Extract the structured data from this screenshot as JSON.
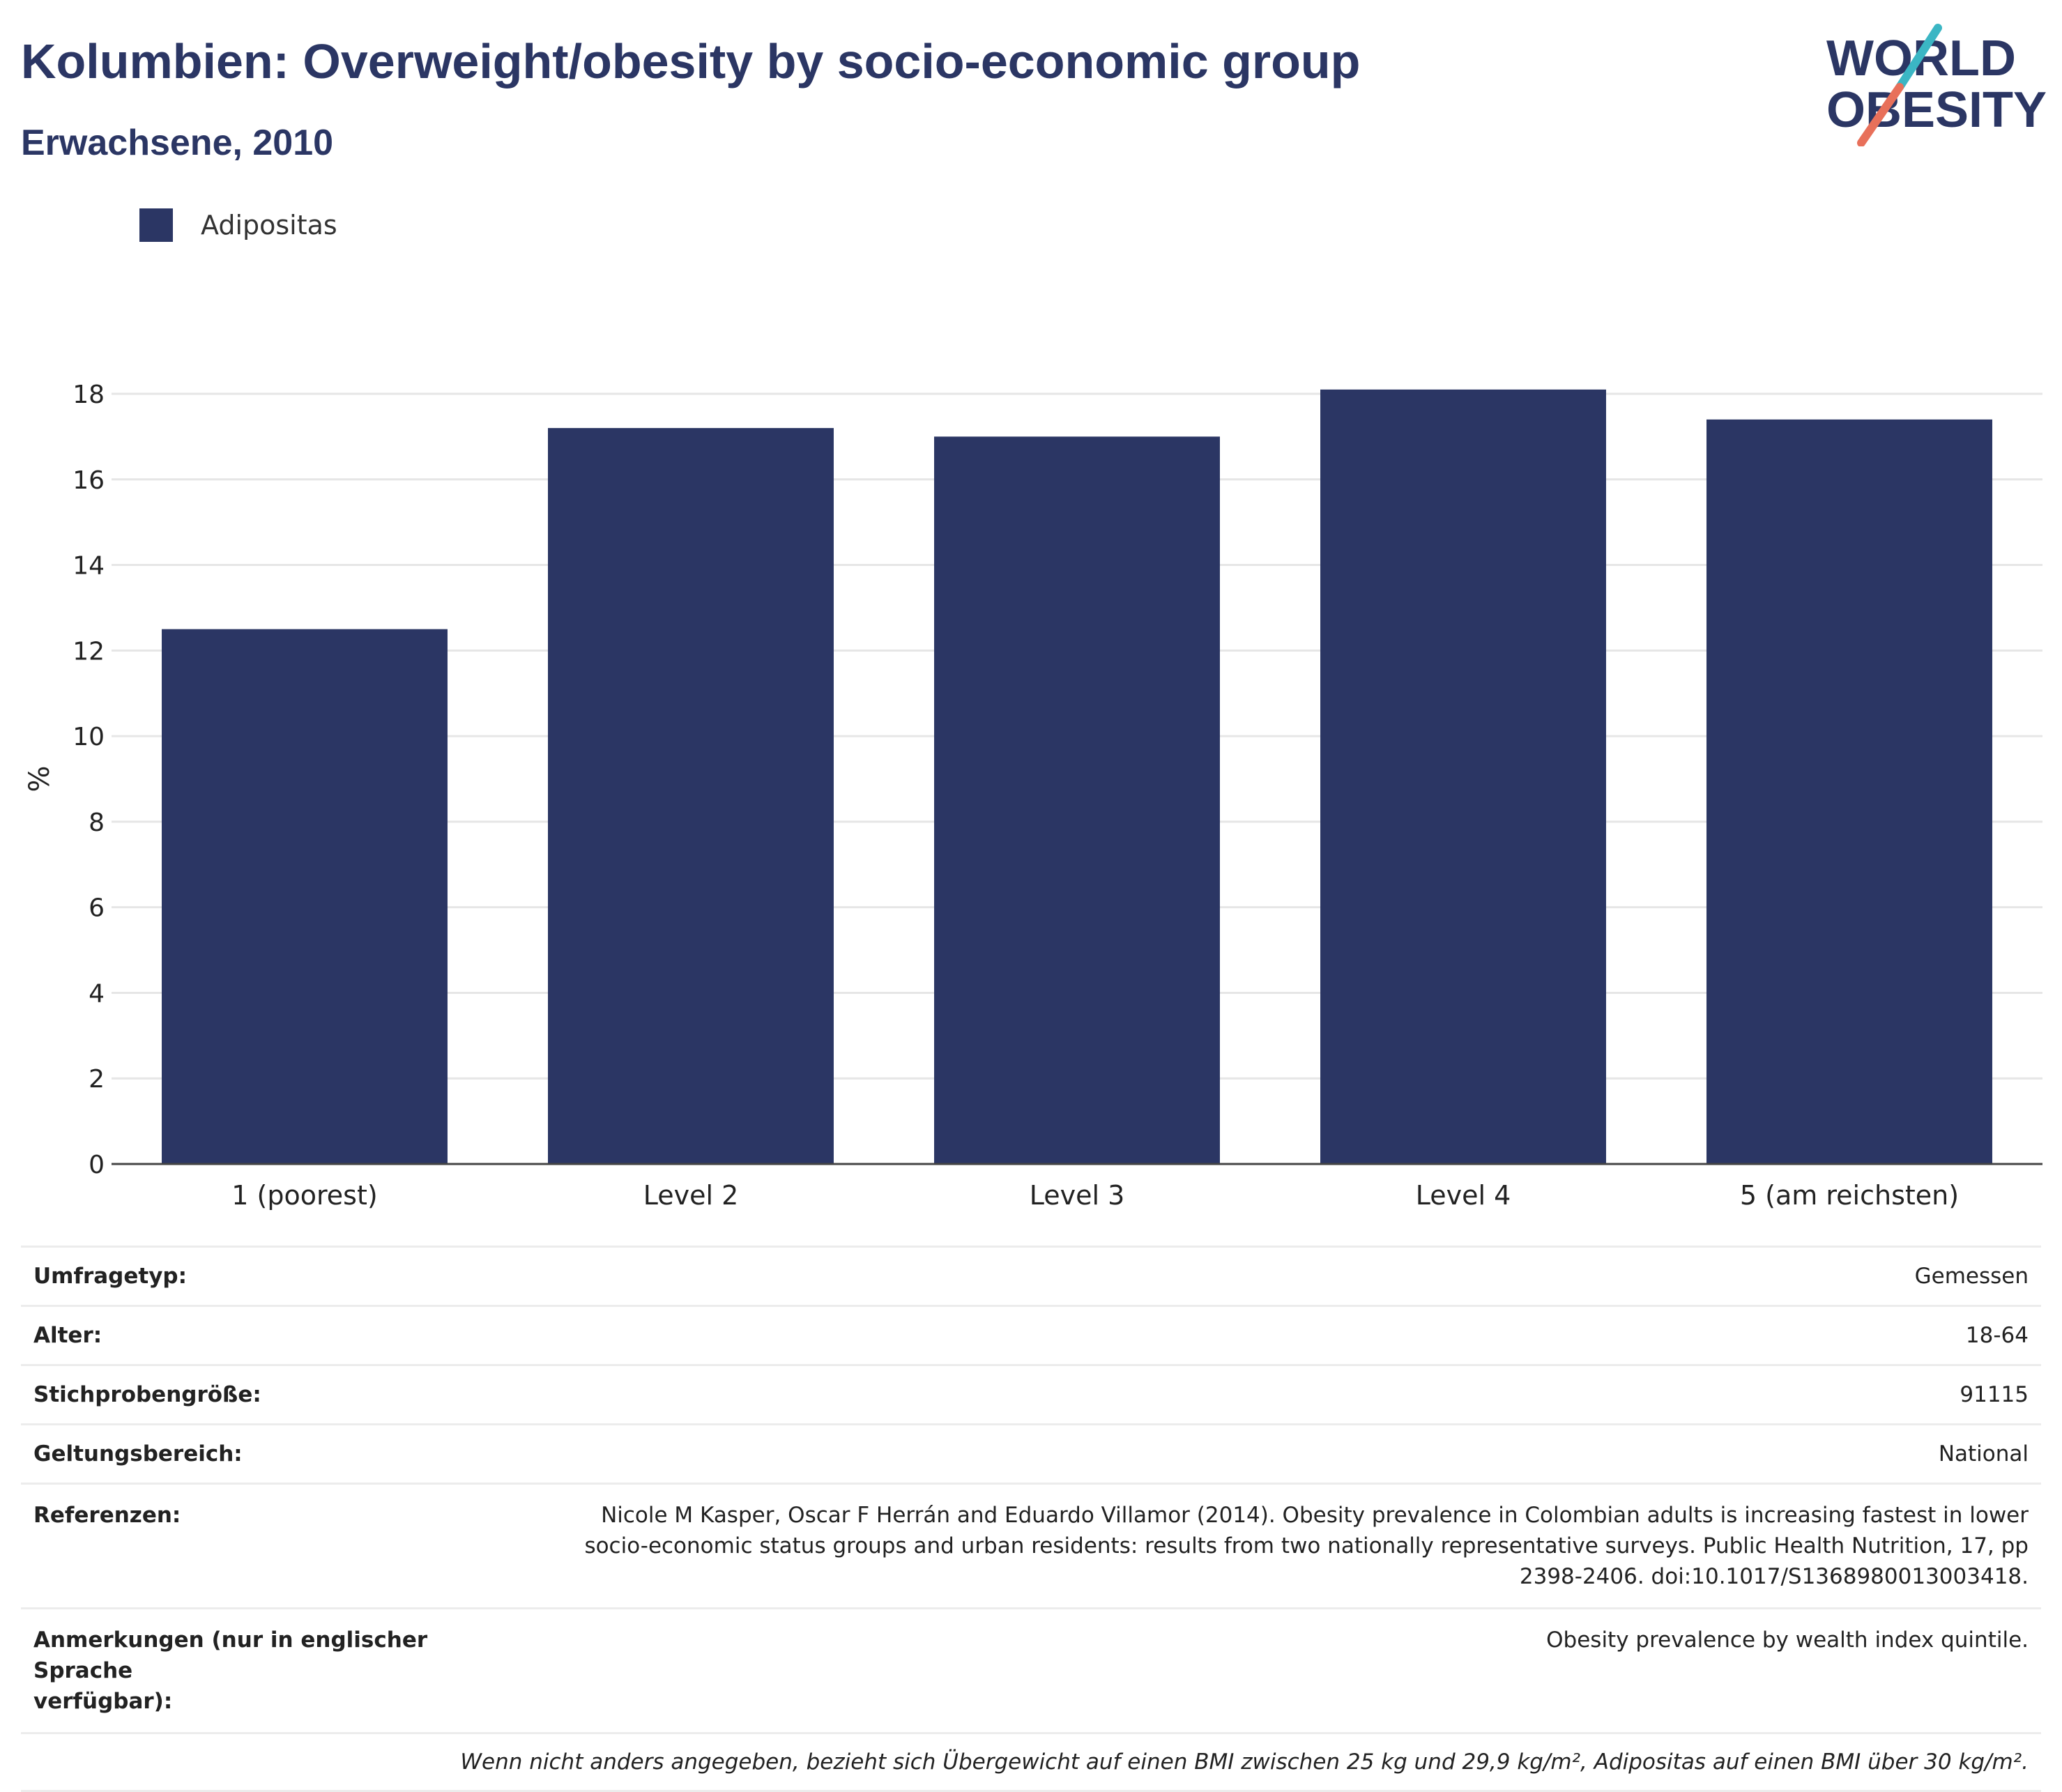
{
  "header": {
    "title": "Kolumbien: Overweight/obesity by socio-economic group",
    "subtitle": "Erwachsene, 2010"
  },
  "logo": {
    "line1": "WORLD",
    "line2": "OBESITY",
    "slash_colors": [
      "#3bb6c4",
      "#e8705a"
    ]
  },
  "legend": {
    "label": "Adipositas",
    "color": "#2b3664"
  },
  "chart_data": {
    "type": "bar",
    "categories": [
      "1 (poorest)",
      "Level 2",
      "Level 3",
      "Level 4",
      "5 (am reichsten)"
    ],
    "series": [
      {
        "name": "Adipositas",
        "values": [
          12.5,
          17.2,
          17.0,
          18.1,
          17.4
        ],
        "color": "#2b3664"
      }
    ],
    "ylabel": "%",
    "xlabel": "",
    "ylim": [
      0,
      18
    ],
    "yticks": [
      0,
      2,
      4,
      6,
      8,
      10,
      12,
      14,
      16,
      18
    ],
    "grid": true,
    "legend_position": "top-left"
  },
  "info": {
    "rows": [
      {
        "label": "Umfragetyp:",
        "value": "Gemessen"
      },
      {
        "label": "Alter:",
        "value": "18-64"
      },
      {
        "label": "Stichprobengröße:",
        "value": "91115"
      },
      {
        "label": "Geltungsbereich:",
        "value": "National"
      }
    ],
    "references_label": "Referenzen:",
    "references_lines": [
      "Nicole M Kasper, Oscar F Herrán and Eduardo Villamor (2014). Obesity prevalence in Colombian adults is increasing fastest in lower",
      "socio-economic status groups and urban residents: results from two nationally representative surveys. Public Health Nutrition, 17, pp",
      "2398-2406. doi:10.1017/S1368980013003418."
    ],
    "notes_label_lines": [
      "Anmerkungen (nur in englischer Sprache",
      "verfügbar):"
    ],
    "notes_value": "Obesity prevalence by wealth index quintile.",
    "footnote": "Wenn nicht anders angegeben, bezieht sich Übergewicht auf einen BMI zwischen 25 kg und 29,9 kg/m², Adipositas auf einen BMI über 30 kg/m²."
  }
}
